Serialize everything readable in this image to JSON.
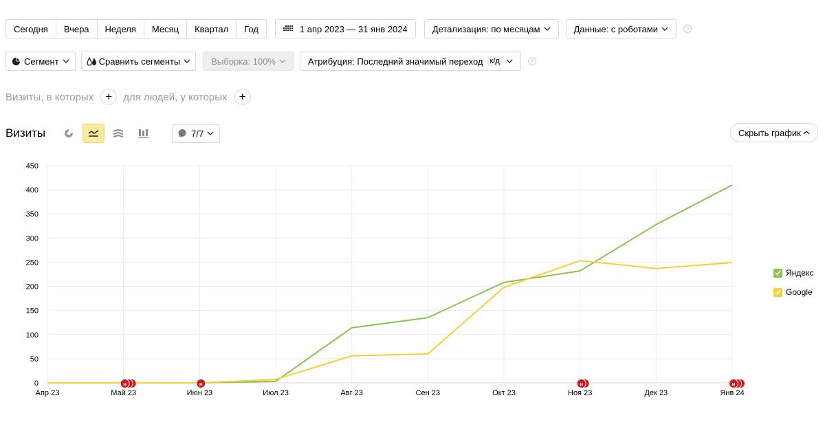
{
  "period": {
    "buttons": [
      "Сегодня",
      "Вчера",
      "Неделя",
      "Месяц",
      "Квартал",
      "Год"
    ],
    "range": "1 апр 2023 — 31 янв 2024",
    "detail": "Детализация: по месяцам",
    "data": "Данные: с роботами"
  },
  "segment": {
    "segment_label": "Сегмент",
    "compare_label": "Сравнить сегменты",
    "sample_label": "Выборка: 100%",
    "attribution_label": "Атрибуция: Последний значимый переход",
    "attribution_badge": "к/д"
  },
  "filters": {
    "visits_label": "Визиты, в которых",
    "people_label": "для людей, у которых"
  },
  "report": {
    "title": "Визиты",
    "series_count": "7/7",
    "hide_chart": "Скрыть график"
  },
  "colors": {
    "yandex": "#8ac44d",
    "google": "#f8d034",
    "marker": "#d2171c",
    "active_view": "#ffeba0"
  },
  "icons": [
    "pie-chart-icon",
    "line-chart-icon",
    "area-chart-icon",
    "bar-chart-icon",
    "comment-icon",
    "calendar-grid-icon",
    "help-icon",
    "chevron-down-icon",
    "chevron-up-icon",
    "plus-icon"
  ],
  "chart_data": {
    "type": "line",
    "categories": [
      "Апр 23",
      "Май 23",
      "Июн 23",
      "Июл 23",
      "Авг 23",
      "Сен 23",
      "Окт 23",
      "Ноя 23",
      "Дек 23",
      "Янв 24"
    ],
    "series": [
      {
        "name": "Яндекс",
        "color": "#8ac44d",
        "values": [
          0,
          0,
          0,
          3,
          114,
          135,
          208,
          232,
          328,
          410
        ]
      },
      {
        "name": "Google",
        "color": "#f8d034",
        "values": [
          0,
          0,
          0,
          7,
          56,
          60,
          198,
          253,
          237,
          249
        ]
      }
    ],
    "ylim": [
      0,
      450
    ],
    "yticks": [
      0,
      50,
      100,
      150,
      200,
      250,
      300,
      350,
      400,
      450
    ],
    "grid": true,
    "legend": "right",
    "annotations": [
      {
        "category": "Май 23",
        "count": 3,
        "label": "н"
      },
      {
        "category": "Июн 23",
        "count": 1,
        "label": "н"
      },
      {
        "category": "Ноя 23",
        "count": 2,
        "label": "н"
      },
      {
        "category": "Янв 24",
        "count": 3,
        "label": "н"
      }
    ]
  }
}
